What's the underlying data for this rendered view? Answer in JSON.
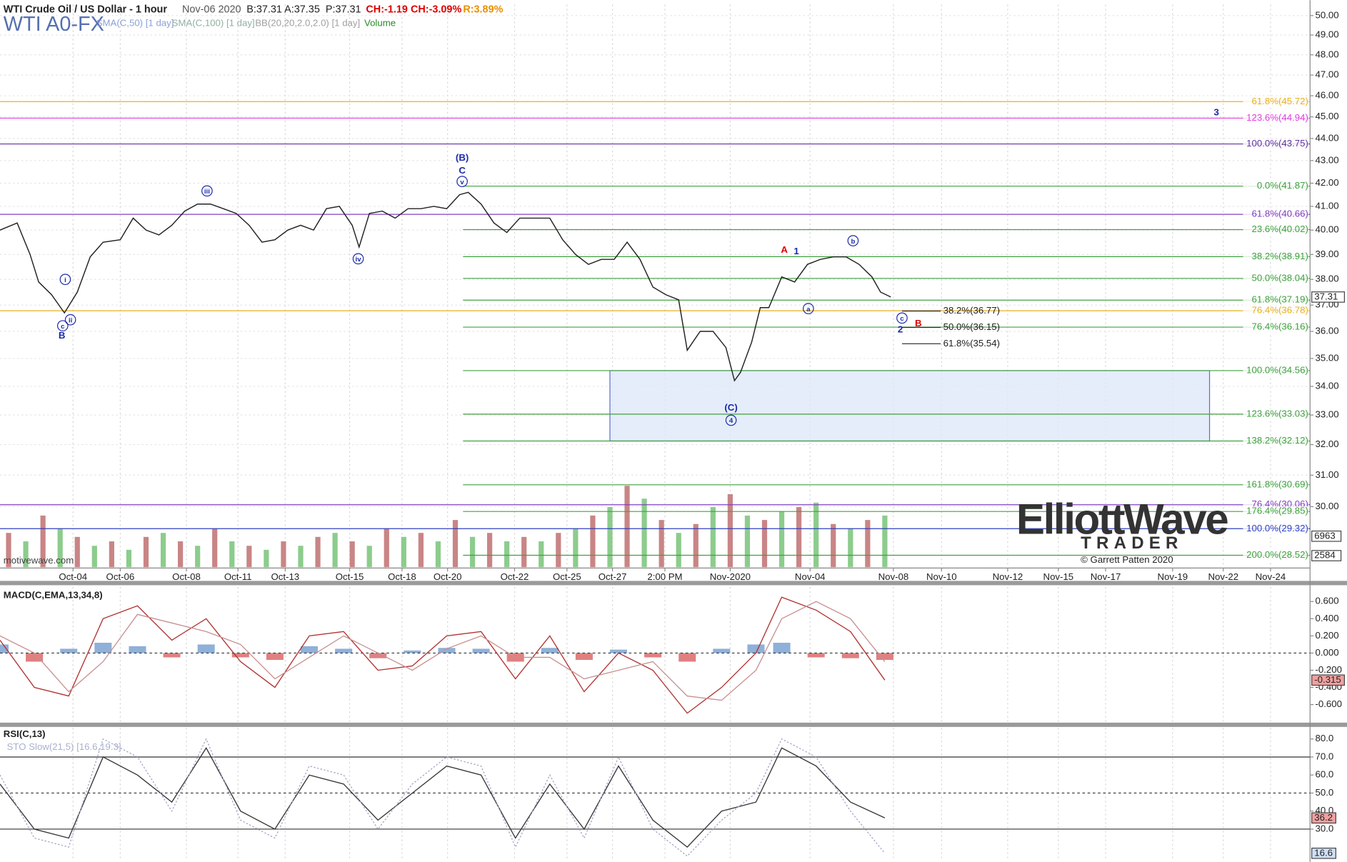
{
  "chart_data": [
    {
      "type": "line",
      "title": "WTI Crude Oil / US Dollar - 1 hour",
      "date": "Nov-06 2020",
      "quote": [
        "B:37.31",
        "A:37.35",
        "P:37.31",
        "CH:-1.19",
        "CH:-3.09%",
        "R:3.89%"
      ],
      "symbol": "WTI A0-FX",
      "indicators": [
        "SMA(C,50) [1 day]",
        "SMA(C,100) [1 day]",
        "BB(20,20,2.0,2.0) [1 day]",
        "Volume"
      ],
      "watermark": "motivewave.com",
      "logo": [
        "ElliottWave",
        "TRADER",
        "© Garrett Patten 2020"
      ],
      "log_scale": true,
      "grid": true,
      "color": "#222222",
      "xlim": [
        0,
        1525
      ],
      "ylim": [
        28.17,
        50.58
      ],
      "xticks": [
        {
          "value": 85,
          "label": "Oct-04"
        },
        {
          "value": 140,
          "label": "Oct-06"
        },
        {
          "value": 217,
          "label": "Oct-08"
        },
        {
          "value": 277,
          "label": "Oct-11"
        },
        {
          "value": 332,
          "label": "Oct-13"
        },
        {
          "value": 407,
          "label": "Oct-15"
        },
        {
          "value": 468,
          "label": "Oct-18"
        },
        {
          "value": 521,
          "label": "Oct-20"
        },
        {
          "value": 599,
          "label": "Oct-22"
        },
        {
          "value": 660,
          "label": "Oct-25"
        },
        {
          "value": 713,
          "label": "Oct-27"
        },
        {
          "value": 774,
          "label": "2:00 PM"
        },
        {
          "value": 850,
          "label": "Nov-2020"
        },
        {
          "value": 943,
          "label": "Nov-04"
        },
        {
          "value": 1040,
          "label": "Nov-08"
        },
        {
          "value": 1096,
          "label": "Nov-10"
        },
        {
          "value": 1173,
          "label": "Nov-12"
        },
        {
          "value": 1232,
          "label": "Nov-15"
        },
        {
          "value": 1287,
          "label": "Nov-17"
        },
        {
          "value": 1365,
          "label": "Nov-19"
        },
        {
          "value": 1424,
          "label": "Nov-22"
        },
        {
          "value": 1479,
          "label": "Nov-24"
        }
      ],
      "yticks": [
        {
          "value": 30,
          "label": "30.00"
        },
        {
          "value": 31,
          "label": "31.00"
        },
        {
          "value": 32,
          "label": "32.00"
        },
        {
          "value": 33,
          "label": "33.00"
        },
        {
          "value": 34,
          "label": "34.00"
        },
        {
          "value": 35,
          "label": "35.00"
        },
        {
          "value": 36,
          "label": "36.00"
        },
        {
          "value": 37,
          "label": "37.00"
        },
        {
          "value": 38,
          "label": "38.00"
        },
        {
          "value": 39,
          "label": "39.00"
        },
        {
          "value": 40,
          "label": "40.00"
        },
        {
          "value": 41,
          "label": "41.00"
        },
        {
          "value": 42,
          "label": "42.00"
        },
        {
          "value": 43,
          "label": "43.00"
        },
        {
          "value": 44,
          "label": "44.00"
        },
        {
          "value": 45,
          "label": "45.00"
        },
        {
          "value": 46,
          "label": "46.00"
        },
        {
          "value": 47,
          "label": "47.00"
        },
        {
          "value": 48,
          "label": "48.00"
        },
        {
          "value": 49,
          "label": "49.00"
        },
        {
          "value": 50,
          "label": "50.00"
        }
      ],
      "x": [
        0,
        20,
        35,
        45,
        60,
        75,
        90,
        105,
        120,
        140,
        155,
        170,
        185,
        200,
        215,
        230,
        245,
        260,
        275,
        290,
        305,
        320,
        335,
        350,
        365,
        380,
        395,
        410,
        418,
        430,
        445,
        460,
        475,
        490,
        505,
        520,
        535,
        545,
        560,
        575,
        590,
        605,
        620,
        640,
        655,
        670,
        685,
        700,
        715,
        730,
        745,
        760,
        775,
        790,
        800,
        815,
        830,
        845,
        855,
        862,
        875,
        885,
        895,
        910,
        925,
        940,
        955,
        970,
        985,
        1000,
        1015,
        1025,
        1037
      ],
      "values": [
        40.0,
        40.3,
        39.0,
        37.9,
        37.4,
        36.7,
        37.5,
        38.9,
        39.5,
        39.6,
        40.5,
        40.0,
        39.8,
        40.2,
        40.8,
        41.1,
        41.1,
        40.9,
        40.7,
        40.2,
        39.5,
        39.6,
        40.0,
        40.2,
        40.0,
        40.9,
        41.0,
        40.2,
        39.3,
        40.7,
        40.8,
        40.5,
        40.9,
        40.9,
        41.0,
        40.9,
        41.5,
        41.6,
        41.1,
        40.3,
        39.9,
        40.5,
        40.5,
        40.5,
        39.6,
        39.0,
        38.6,
        38.8,
        38.8,
        39.5,
        38.8,
        37.7,
        37.4,
        37.2,
        35.3,
        36.0,
        36.0,
        35.4,
        34.2,
        34.5,
        35.6,
        36.9,
        36.9,
        38.1,
        37.9,
        38.6,
        38.8,
        38.9,
        38.9,
        38.6,
        38.1,
        37.5,
        37.31
      ],
      "last_price": 37.31,
      "volume": {
        "name": "Volume",
        "axis": "y2",
        "color": "#c98585",
        "x": [
          10,
          30,
          50,
          70,
          90,
          110,
          130,
          150,
          170,
          190,
          210,
          230,
          250,
          270,
          290,
          310,
          330,
          350,
          370,
          390,
          410,
          430,
          450,
          470,
          490,
          510,
          530,
          550,
          570,
          590,
          610,
          630,
          650,
          670,
          690,
          710,
          730,
          750,
          770,
          790,
          810,
          830,
          850,
          870,
          890,
          910,
          930,
          950,
          970,
          990,
          1010,
          1030
        ],
        "values": [
          7700,
          5800,
          11600,
          8700,
          6800,
          4800,
          5800,
          3900,
          6800,
          7700,
          5800,
          4800,
          8700,
          5800,
          4800,
          3900,
          5800,
          4800,
          6800,
          7700,
          5800,
          4800,
          8700,
          6800,
          7700,
          5800,
          10600,
          6800,
          7700,
          5800,
          6800,
          5800,
          7700,
          8700,
          11600,
          13500,
          18300,
          15400,
          10600,
          7700,
          9700,
          13500,
          16400,
          11600,
          10600,
          12500,
          13500,
          14500,
          9700,
          8700,
          10600,
          11600
        ]
      },
      "y2lim": [
        0,
        126500
      ],
      "y2ticks": [
        2584,
        6963
      ],
      "fib_levels": [
        {
          "label": "61.8%(45.72)",
          "value": 45.72,
          "color": "#e8b020",
          "from": 0
        },
        {
          "label": "123.6%(44.94)",
          "value": 44.94,
          "color": "#e040e0",
          "from": 0
        },
        {
          "label": "100.0%(43.75)",
          "value": 43.75,
          "color": "#6030a0",
          "from": 0
        },
        {
          "label": "0.0%(41.87)",
          "value": 41.87,
          "color": "#40a040",
          "from": 539
        },
        {
          "label": "61.8%(40.66)",
          "value": 40.66,
          "color": "#8040c0",
          "from": 0
        },
        {
          "label": "23.6%(40.02)",
          "value": 40.02,
          "color": "#40a040",
          "from": 539
        },
        {
          "label": "38.2%(38.91)",
          "value": 38.91,
          "color": "#40a040",
          "from": 539
        },
        {
          "label": "50.0%(38.04)",
          "value": 38.04,
          "color": "#40a040",
          "from": 539
        },
        {
          "label": "61.8%(37.19)",
          "value": 37.19,
          "color": "#40a040",
          "from": 539
        },
        {
          "label": "76.4%(36.78)",
          "value": 36.78,
          "color": "#e8b020",
          "from": 0
        },
        {
          "label": "76.4%(36.16)",
          "value": 36.16,
          "color": "#40a040",
          "from": 539
        },
        {
          "label": "100.0%(34.56)",
          "value": 34.56,
          "color": "#40a040",
          "from": 539
        },
        {
          "label": "123.6%(33.03)",
          "value": 33.03,
          "color": "#40a040",
          "from": 539
        },
        {
          "label": "138.2%(32.12)",
          "value": 32.12,
          "color": "#40a040",
          "from": 539
        },
        {
          "label": "161.8%(30.69)",
          "value": 30.69,
          "color": "#40a040",
          "from": 539
        },
        {
          "label": "76.4%(30.06)",
          "value": 30.06,
          "color": "#8040c0",
          "from": 0
        },
        {
          "label": "176.4%(29.85)",
          "value": 29.85,
          "color": "#40a040",
          "from": 539
        },
        {
          "label": "100.0%(29.32)",
          "value": 29.32,
          "color": "#3040c0",
          "from": 0
        },
        {
          "label": "200.0%(28.52)",
          "value": 28.52,
          "color": "#40a040",
          "from": 539
        },
        {
          "label": "38.2%(36.77)",
          "value": 36.77,
          "color": "#222222",
          "from": 1050,
          "to": 1095
        },
        {
          "label": "50.0%(36.15)",
          "value": 36.15,
          "color": "#222222",
          "from": 1050,
          "to": 1095
        },
        {
          "label": "61.8%(35.54)",
          "value": 35.54,
          "color": "#222222",
          "from": 1050,
          "to": 1095
        }
      ],
      "zone": {
        "x": [
          710,
          1408
        ],
        "y": [
          32.12,
          34.56
        ],
        "color": "#dfe8fa"
      },
      "wave_labels": [
        "(B)",
        "C",
        "v",
        "iii",
        "iv",
        "i",
        "ii",
        "c",
        "B",
        "A",
        "1",
        "a",
        "b",
        "c",
        "2",
        "B",
        "(C)",
        "4",
        "3"
      ]
    },
    {
      "type": "line",
      "title": "MACD(C,EMA,13,34,8)",
      "xlim": [
        0,
        1525
      ],
      "ylim": [
        -0.8,
        0.77
      ],
      "yticks": [
        {
          "value": 0.6,
          "label": "0.600"
        },
        {
          "value": 0.4,
          "label": "0.400"
        },
        {
          "value": 0.2,
          "label": "0.200"
        },
        {
          "value": 0,
          "label": "0.000"
        },
        {
          "value": -0.2,
          "label": "-0.200"
        },
        {
          "value": -0.4,
          "label": "-0.400"
        },
        {
          "value": -0.6,
          "label": "-0.600"
        }
      ],
      "x": [
        0,
        40,
        80,
        120,
        160,
        200,
        240,
        280,
        320,
        360,
        400,
        440,
        480,
        520,
        560,
        600,
        640,
        680,
        720,
        760,
        800,
        840,
        880,
        910,
        950,
        990,
        1030
      ],
      "lines": [
        {
          "color": "#b03030",
          "values": [
            0.15,
            -0.4,
            -0.5,
            0.4,
            0.55,
            0.15,
            0.4,
            -0.1,
            -0.4,
            0.2,
            0.25,
            -0.2,
            -0.15,
            0.2,
            0.25,
            -0.3,
            0.2,
            -0.45,
            0,
            -0.2,
            -0.7,
            -0.4,
            0,
            0.65,
            0.5,
            0.25,
            -0.315
          ]
        },
        {
          "color": "#c89090",
          "values": [
            0.2,
            0.0,
            -0.45,
            -0.1,
            0.45,
            0.35,
            0.25,
            0.1,
            -0.3,
            -0.05,
            0.2,
            0.0,
            -0.2,
            0.05,
            0.2,
            -0.05,
            -0.05,
            -0.3,
            -0.2,
            -0.1,
            -0.5,
            -0.55,
            -0.2,
            0.4,
            0.6,
            0.4,
            -0.1
          ]
        }
      ],
      "histogram": [
        0.1,
        -0.1,
        0.05,
        0.12,
        0.08,
        -0.05,
        0.1,
        -0.05,
        -0.08,
        0.08,
        0.05,
        -0.06,
        0.03,
        0.06,
        0.05,
        -0.1,
        0.06,
        -0.08,
        0.04,
        -0.05,
        -0.1,
        0.05,
        0.1,
        0.12,
        -0.05,
        -0.06,
        -0.08
      ],
      "last_value": {
        "value": -0.315,
        "label": "-0.315"
      }
    },
    {
      "type": "line",
      "title": "RSI(C,13)",
      "subtitle": "STO Slow(21,5) [16.6,19.3]",
      "xlim": [
        0,
        1525
      ],
      "ylim": [
        13.3,
        86.2
      ],
      "yticks": [
        {
          "value": 30,
          "label": "30.0"
        },
        {
          "value": 40,
          "label": "40.0"
        },
        {
          "value": 50,
          "label": "50.0"
        },
        {
          "value": 60,
          "label": "60.0"
        },
        {
          "value": 70,
          "label": "70.0"
        },
        {
          "value": 80,
          "label": "80.0"
        }
      ],
      "levels": [
        70,
        50,
        30
      ],
      "x": [
        0,
        40,
        80,
        120,
        160,
        200,
        240,
        280,
        320,
        360,
        400,
        440,
        480,
        520,
        560,
        600,
        640,
        680,
        720,
        760,
        800,
        840,
        880,
        910,
        950,
        990,
        1030
      ],
      "lines": [
        {
          "color": "#333333",
          "values": [
            55,
            30,
            25,
            70,
            60,
            45,
            75,
            40,
            30,
            60,
            55,
            35,
            50,
            65,
            60,
            25,
            55,
            30,
            65,
            35,
            20,
            40,
            45,
            75,
            65,
            45,
            36.2
          ]
        },
        {
          "color": "#a0a8c8",
          "values": [
            60,
            25,
            20,
            80,
            70,
            40,
            80,
            35,
            25,
            65,
            60,
            30,
            55,
            70,
            65,
            20,
            60,
            25,
            70,
            30,
            15,
            35,
            50,
            80,
            70,
            40,
            16.6
          ]
        }
      ]
    }
  ]
}
